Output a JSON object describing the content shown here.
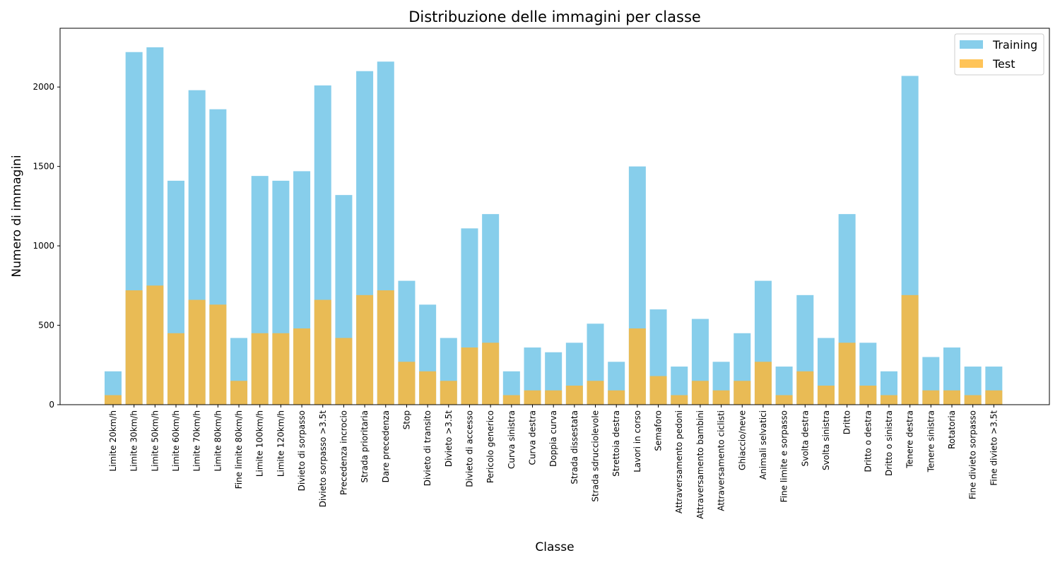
{
  "chart_data": {
    "type": "bar",
    "title": "Distribuzione delle immagini per classe",
    "xlabel": "Classe",
    "ylabel": "Numero di immagini",
    "ylim": [
      0,
      2370
    ],
    "yticks": [
      0,
      500,
      1000,
      1500,
      2000
    ],
    "grid": false,
    "legend_position": "top-right",
    "categories": [
      "Limite 20km/h",
      "Limite 30km/h",
      "Limite 50km/h",
      "Limite 60km/h",
      "Limite 70km/h",
      "Limite 80km/h",
      "Fine limite 80km/h",
      "Limite 100km/h",
      "Limite 120km/h",
      "Divieto di sorpasso",
      "Divieto sorpasso >3.5t",
      "Precedenza incrocio",
      "Strada prioritaria",
      "Dare precedenza",
      "Stop",
      "Divieto di transito",
      "Divieto >3.5t",
      "Divieto di accesso",
      "Pericolo generico",
      "Curva sinistra",
      "Curva destra",
      "Doppia curva",
      "Strada dissestata",
      "Strada sdrucciolevole",
      "Strettoia destra",
      "Lavori in corso",
      "Semaforo",
      "Attraversamento pedoni",
      "Attraversamento bambini",
      "Attraversamento ciclisti",
      "Ghiaccio/neve",
      "Animali selvatici",
      "Fine limite e sorpasso",
      "Svolta destra",
      "Svolta sinistra",
      "Dritto",
      "Dritto o destra",
      "Dritto o sinistra",
      "Tenere destra",
      "Tenere sinistra",
      "Rotatoria",
      "Fine divieto sorpasso",
      "Fine divieto >3.5t"
    ],
    "series": [
      {
        "name": "Training",
        "color": "#87ceeb",
        "values": [
          210,
          2220,
          2250,
          1410,
          1980,
          1860,
          420,
          1440,
          1410,
          1470,
          2010,
          1320,
          2100,
          2160,
          780,
          630,
          420,
          1110,
          1200,
          210,
          360,
          330,
          390,
          510,
          270,
          1500,
          600,
          240,
          540,
          270,
          450,
          780,
          240,
          690,
          420,
          1200,
          390,
          210,
          2070,
          300,
          360,
          240,
          240
        ]
      },
      {
        "name": "Test",
        "color": "#ffb733",
        "values": [
          60,
          720,
          750,
          450,
          660,
          630,
          150,
          450,
          450,
          480,
          660,
          420,
          690,
          720,
          270,
          210,
          150,
          360,
          390,
          60,
          90,
          90,
          120,
          150,
          90,
          480,
          180,
          60,
          150,
          90,
          150,
          270,
          60,
          210,
          120,
          390,
          120,
          60,
          690,
          90,
          90,
          60,
          90
        ]
      }
    ]
  }
}
